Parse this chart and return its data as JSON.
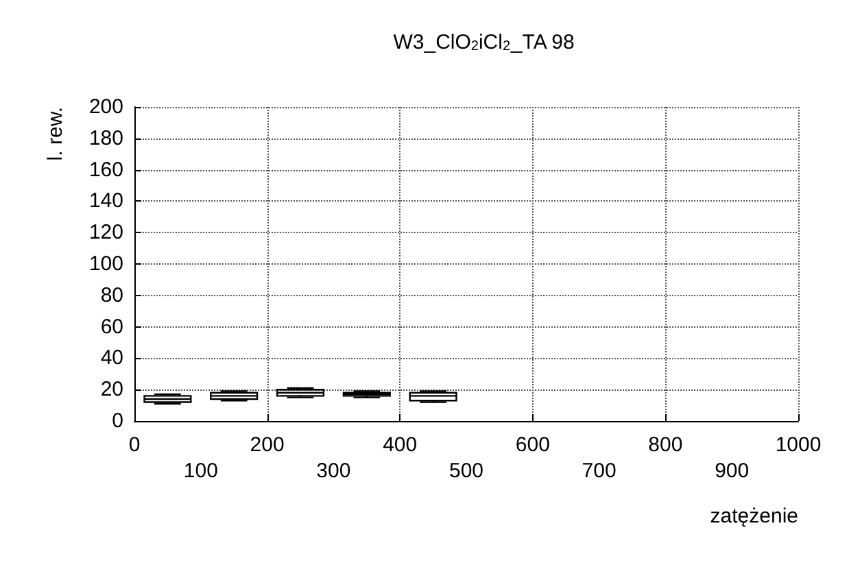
{
  "chart_data": {
    "type": "box",
    "title": "W3_ClO$_{2}$iCl$_{2}$_TA 98",
    "xlabel": "zatężenie",
    "ylabel": "l. rew.",
    "x": [
      50,
      150,
      250,
      350,
      450
    ],
    "boxes": [
      {
        "low": 11,
        "q1": 12,
        "median": 14,
        "q3": 16,
        "high": 17
      },
      {
        "low": 13,
        "q1": 14,
        "median": 16,
        "q3": 18,
        "high": 19
      },
      {
        "low": 15,
        "q1": 16,
        "median": 18,
        "q3": 20,
        "high": 21
      },
      {
        "low": 15,
        "q1": 16,
        "median": 17,
        "q3": 18,
        "high": 19
      },
      {
        "low": 12,
        "q1": 13,
        "median": 16,
        "q3": 18,
        "high": 19
      }
    ],
    "xlim": [
      0,
      1000
    ],
    "xticks": [
      0,
      200,
      400,
      600,
      800,
      1000
    ],
    "x2lim": [
      0,
      1000
    ],
    "x2ticks": [
      100,
      300,
      500,
      700,
      900
    ],
    "ylim": [
      0,
      200
    ],
    "yticks": [
      0,
      20,
      40,
      60,
      80,
      100,
      120,
      140,
      160,
      180,
      200
    ],
    "grid": true
  }
}
